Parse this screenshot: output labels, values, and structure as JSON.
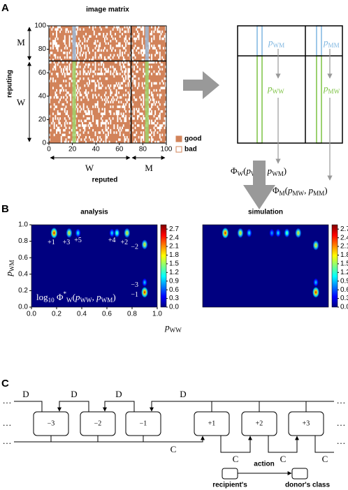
{
  "panel_a": {
    "label": "A",
    "title": "image matrix",
    "xlim": [
      0,
      100
    ],
    "ylim": [
      0,
      100
    ],
    "xticks": [
      0,
      20,
      40,
      60,
      80,
      100
    ],
    "yticks": [
      0,
      20,
      40,
      60,
      80,
      100
    ],
    "row_labels": [
      "M",
      "W"
    ],
    "col_labels": [
      "W",
      "M"
    ],
    "y_label": "reputing",
    "x_label": "reputed",
    "legend": [
      {
        "name": "good",
        "color": "#d2835a"
      },
      {
        "name": "bad",
        "color": "#ffffff"
      }
    ],
    "schematic": {
      "p_wm": [
        {
          "t": "p",
          "it": true
        },
        {
          "t": "WM",
          "sub": true
        }
      ],
      "p_mm": [
        {
          "t": "p",
          "it": true
        },
        {
          "t": "MM",
          "sub": true
        }
      ],
      "p_ww": [
        {
          "t": "p",
          "it": true
        },
        {
          "t": "WW",
          "sub": true
        }
      ],
      "p_mw": [
        {
          "t": "p",
          "it": true
        },
        {
          "t": "MW",
          "sub": true
        }
      ],
      "formula_w": [
        {
          "t": "Φ"
        },
        {
          "t": "W",
          "sub": true
        },
        {
          "t": "("
        },
        {
          "t": "p",
          "it": true
        },
        {
          "t": "WW",
          "sub": true
        },
        {
          "t": ", "
        },
        {
          "t": "p",
          "it": true
        },
        {
          "t": "WM",
          "sub": true
        },
        {
          "t": ")"
        }
      ],
      "formula_m": [
        {
          "t": "Φ"
        },
        {
          "t": "M",
          "sub": true
        },
        {
          "t": "("
        },
        {
          "t": "p",
          "it": true
        },
        {
          "t": "MW",
          "sub": true
        },
        {
          "t": ", "
        },
        {
          "t": "p",
          "it": true
        },
        {
          "t": "MM",
          "sub": true
        },
        {
          "t": ")"
        }
      ]
    }
  },
  "panel_b": {
    "label": "B",
    "xlim": [
      0,
      1
    ],
    "ylim": [
      0,
      1
    ],
    "xticks": [
      {
        "value": 0,
        "label": "0.0"
      },
      0.2,
      0.4,
      0.6,
      0.8,
      {
        "value": 1,
        "label": "1.0"
      }
    ],
    "yticks": [
      {
        "value": 0,
        "label": "0.0"
      },
      0.2,
      0.4,
      0.6,
      0.8,
      {
        "value": 1,
        "label": "1.0"
      }
    ],
    "clim": [
      0,
      2.85
    ],
    "cticks": [
      {
        "value": 0,
        "label": "0.0"
      },
      0.3,
      0.6,
      0.9,
      1.2,
      1.5,
      1.8,
      2.1,
      2.4,
      2.7
    ],
    "x_label": [
      {
        "t": "p",
        "it": true
      },
      {
        "t": "WW",
        "sub": true
      }
    ],
    "y_label": [
      {
        "t": "p",
        "it": true
      },
      {
        "t": "WM",
        "sub": true
      }
    ],
    "analysis": {
      "title": "analysis",
      "annotation": [
        {
          "t": "log"
        },
        {
          "t": "10",
          "sub": true
        },
        {
          "t": " Φ"
        },
        {
          "t": "*",
          "sup": true
        },
        {
          "t": "W",
          "sub": true
        },
        {
          "t": "("
        },
        {
          "t": "p",
          "it": true
        },
        {
          "t": "WW",
          "sub": true
        },
        {
          "t": ", "
        },
        {
          "t": "p",
          "it": true
        },
        {
          "t": "WM",
          "sub": true
        },
        {
          "t": ")"
        }
      ],
      "peaks": [
        {
          "label": "+1",
          "x": 0.18,
          "y": 0.9,
          "peak": 2.7
        },
        {
          "label": "+3",
          "x": 0.3,
          "y": 0.9,
          "peak": 2.0
        },
        {
          "label": "+5",
          "x": 0.37,
          "y": 0.9,
          "peak": 1.2
        },
        {
          "label": "+4",
          "x": 0.64,
          "y": 0.9,
          "peak": 1.1
        },
        {
          "x": 0.68,
          "y": 0.9,
          "peak": 1.5
        },
        {
          "label": "+2",
          "x": 0.76,
          "y": 0.9,
          "peak": 2.0
        },
        {
          "label": "−2",
          "x": 0.9,
          "y": 0.76,
          "peak": 2.0
        },
        {
          "label": "−3",
          "x": 0.9,
          "y": 0.3,
          "peak": 1.0
        },
        {
          "label": "−1",
          "x": 0.9,
          "y": 0.18,
          "peak": 2.7
        }
      ]
    },
    "simulation": {
      "title": "simulation",
      "peaks": [
        {
          "x": 0.18,
          "y": 0.9,
          "peak": 2.7
        },
        {
          "x": 0.3,
          "y": 0.9,
          "peak": 2.0
        },
        {
          "x": 0.37,
          "y": 0.9,
          "peak": 1.2
        },
        {
          "x": 0.55,
          "y": 0.9,
          "peak": 0.9
        },
        {
          "x": 0.6,
          "y": 0.9,
          "peak": 1.1
        },
        {
          "x": 0.67,
          "y": 0.9,
          "peak": 1.5
        },
        {
          "x": 0.76,
          "y": 0.9,
          "peak": 2.0
        },
        {
          "x": 0.9,
          "y": 0.75,
          "peak": 2.0
        },
        {
          "x": 0.9,
          "y": 0.3,
          "peak": 1.0
        },
        {
          "x": 0.9,
          "y": 0.18,
          "peak": 2.7
        }
      ]
    }
  },
  "panel_c": {
    "label": "C",
    "classes": [
      "−3",
      "−2",
      "−1",
      "+1",
      "+2",
      "+3"
    ],
    "defect": "D",
    "cooperate": "C",
    "ellipsis": "…",
    "legend": {
      "action": "action",
      "recipient": "recipient's",
      "donor": "donor's class"
    }
  }
}
